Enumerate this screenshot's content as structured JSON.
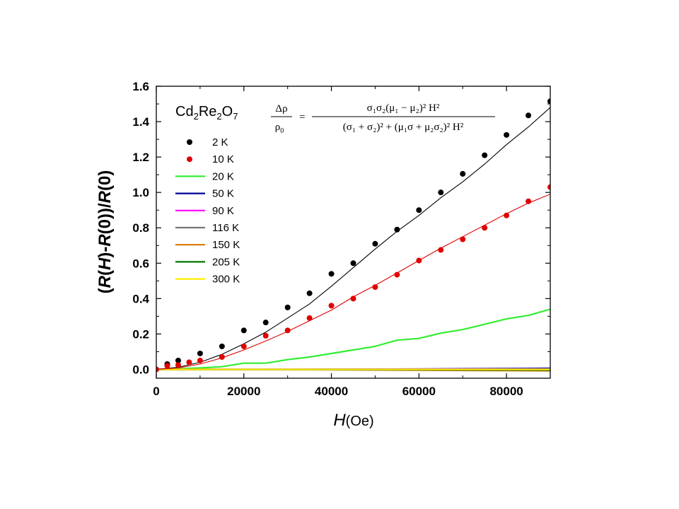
{
  "chart_data": {
    "type": "scatter",
    "title": "",
    "material": {
      "base": [
        "Cd",
        "Re",
        "O"
      ],
      "subscripts": [
        "2",
        "2",
        "7"
      ]
    },
    "formula": {
      "lhs_num": "Δρ",
      "lhs_den": "ρ",
      "lhs_den_sub": "0",
      "equals": "=",
      "numerator": "σ₁σ₂(μ₁ − μ₂)² H²",
      "denominator": "(σ₁ + σ₂)² + (μ₁σ + μ₂σ₂)² H²"
    },
    "xlabel": {
      "italic": "H",
      "rest": "(Oe)"
    },
    "ylabel": {
      "parts": [
        {
          "text": "(",
          "italic": false
        },
        {
          "text": "R",
          "italic": true
        },
        {
          "text": "(",
          "italic": false
        },
        {
          "text": "H",
          "italic": true
        },
        {
          "text": ")-",
          "italic": false
        },
        {
          "text": "R",
          "italic": true
        },
        {
          "text": "(0))/",
          "italic": false
        },
        {
          "text": "R",
          "italic": true
        },
        {
          "text": "(0)",
          "italic": false
        }
      ]
    },
    "xlim": [
      0,
      90000
    ],
    "ylim": [
      -0.05,
      1.6
    ],
    "x_ticks": [
      0,
      20000,
      40000,
      60000,
      80000
    ],
    "x_tick_labels": [
      "0",
      "20000",
      "40000",
      "60000",
      "80000"
    ],
    "y_ticks": [
      0.0,
      0.2,
      0.4,
      0.6,
      0.8,
      1.0,
      1.2,
      1.4,
      1.6
    ],
    "y_tick_labels": [
      "0.0",
      "0.2",
      "0.4",
      "0.6",
      "0.8",
      "1.0",
      "1.2",
      "1.4",
      "1.6"
    ],
    "grid": false,
    "legend_position": "top-left",
    "series": [
      {
        "name": "2 K",
        "kind": "points",
        "color": "#000000",
        "x": [
          2500,
          5000,
          10000,
          15000,
          20000,
          25000,
          30000,
          35000,
          40000,
          45000,
          50000,
          55000,
          60000,
          65000,
          70000,
          75000,
          80000,
          85000,
          90000
        ],
        "y": [
          0.03,
          0.05,
          0.09,
          0.13,
          0.22,
          0.265,
          0.35,
          0.43,
          0.54,
          0.6,
          0.71,
          0.79,
          0.9,
          1.0,
          1.105,
          1.21,
          1.325,
          1.435,
          1.515
        ]
      },
      {
        "name": "10 K",
        "kind": "points",
        "color": "#e00000",
        "x": [
          0,
          2500,
          5000,
          7500,
          10000,
          15000,
          20000,
          25000,
          30000,
          35000,
          40000,
          45000,
          50000,
          55000,
          60000,
          65000,
          70000,
          75000,
          80000,
          85000,
          90000
        ],
        "y": [
          0.0,
          0.02,
          0.025,
          0.04,
          0.05,
          0.07,
          0.13,
          0.19,
          0.22,
          0.29,
          0.36,
          0.4,
          0.465,
          0.535,
          0.615,
          0.675,
          0.735,
          0.8,
          0.87,
          0.95,
          1.03
        ]
      },
      {
        "name": "20 K",
        "kind": "line",
        "color": "#33ee33",
        "x": [
          0,
          5000,
          10000,
          15000,
          20000,
          25000,
          30000,
          35000,
          40000,
          45000,
          50000,
          55000,
          60000,
          65000,
          70000,
          75000,
          80000,
          85000,
          90000
        ],
        "y": [
          0.0,
          0.003,
          0.008,
          0.015,
          0.035,
          0.035,
          0.055,
          0.07,
          0.09,
          0.11,
          0.13,
          0.165,
          0.175,
          0.205,
          0.225,
          0.255,
          0.285,
          0.305,
          0.34
        ]
      },
      {
        "name": "50 K",
        "kind": "line",
        "color": "#000099",
        "x": [
          0,
          30000,
          60000,
          85000,
          90000
        ],
        "y": [
          0.0,
          0.0,
          0.002,
          0.005,
          0.006
        ]
      },
      {
        "name": "90 K",
        "kind": "line",
        "color": "#ff00ff",
        "x": [
          0,
          30000,
          60000,
          90000
        ],
        "y": [
          0.0,
          0.0,
          0.001,
          0.002
        ]
      },
      {
        "name": "116 K",
        "kind": "line",
        "color": "#777777",
        "x": [
          0,
          30000,
          60000,
          90000
        ],
        "y": [
          0.0,
          0.0,
          0.0,
          0.001
        ]
      },
      {
        "name": "150 K",
        "kind": "line",
        "color": "#dd7700",
        "x": [
          0,
          30000,
          55000,
          70000,
          90000
        ],
        "y": [
          0.0,
          -0.001,
          -0.004,
          -0.006,
          -0.008
        ]
      },
      {
        "name": "205 K",
        "kind": "line",
        "color": "#007700",
        "x": [
          0,
          30000,
          60000,
          90000
        ],
        "y": [
          0.0,
          -0.001,
          -0.002,
          -0.004
        ]
      },
      {
        "name": "300 K",
        "kind": "line",
        "color": "#ffee00",
        "x": [
          0,
          30000,
          60000,
          90000
        ],
        "y": [
          0.0,
          0.0,
          0.0,
          0.0
        ]
      }
    ],
    "fits": [
      {
        "for": "2 K",
        "color": "#000000",
        "x": [
          0,
          5000,
          10000,
          15000,
          20000,
          25000,
          30000,
          35000,
          40000,
          45000,
          50000,
          55000,
          60000,
          65000,
          70000,
          75000,
          80000,
          85000,
          90000
        ],
        "y": [
          0.0,
          0.012,
          0.04,
          0.085,
          0.145,
          0.21,
          0.29,
          0.37,
          0.47,
          0.575,
          0.68,
          0.78,
          0.87,
          0.97,
          1.06,
          1.16,
          1.27,
          1.37,
          1.48
        ]
      },
      {
        "for": "10 K",
        "color": "#e00000",
        "x": [
          0,
          5000,
          10000,
          15000,
          20000,
          25000,
          30000,
          35000,
          40000,
          45000,
          50000,
          55000,
          60000,
          65000,
          70000,
          75000,
          80000,
          85000,
          90000
        ],
        "y": [
          0.0,
          0.008,
          0.03,
          0.065,
          0.11,
          0.16,
          0.215,
          0.275,
          0.335,
          0.41,
          0.475,
          0.545,
          0.615,
          0.685,
          0.75,
          0.815,
          0.88,
          0.94,
          0.99
        ]
      }
    ]
  }
}
